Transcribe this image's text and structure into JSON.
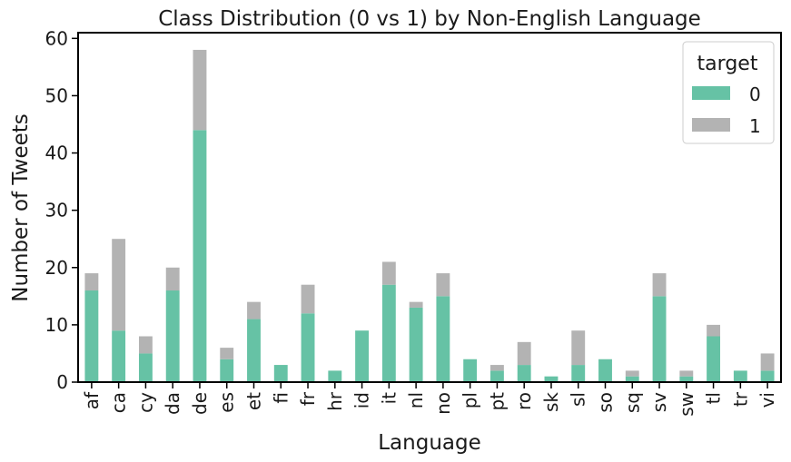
{
  "chart_data": {
    "type": "bar",
    "stacked": true,
    "title": "Class Distribution (0 vs 1) by Non-English Language",
    "xlabel": "Language",
    "ylabel": "Number of Tweets",
    "ylim": [
      0,
      61
    ],
    "yticks": [
      0,
      10,
      20,
      30,
      40,
      50,
      60
    ],
    "categories": [
      "af",
      "ca",
      "cy",
      "da",
      "de",
      "es",
      "et",
      "fi",
      "fr",
      "hr",
      "id",
      "it",
      "nl",
      "no",
      "pl",
      "pt",
      "ro",
      "sk",
      "sl",
      "so",
      "sq",
      "sv",
      "sw",
      "tl",
      "tr",
      "vi"
    ],
    "series": [
      {
        "name": "0",
        "color": "#66c2a5",
        "values": [
          16,
          9,
          5,
          16,
          44,
          4,
          11,
          3,
          12,
          2,
          9,
          17,
          13,
          15,
          4,
          2,
          3,
          1,
          3,
          4,
          1,
          15,
          1,
          8,
          2,
          2
        ]
      },
      {
        "name": "1",
        "color": "#b3b3b3",
        "values": [
          3,
          16,
          3,
          4,
          14,
          2,
          3,
          0,
          5,
          0,
          0,
          4,
          1,
          4,
          0,
          1,
          4,
          0,
          6,
          0,
          1,
          4,
          1,
          2,
          0,
          3
        ]
      }
    ],
    "legend": {
      "title": "target",
      "position": "top-right"
    },
    "grid": false
  }
}
